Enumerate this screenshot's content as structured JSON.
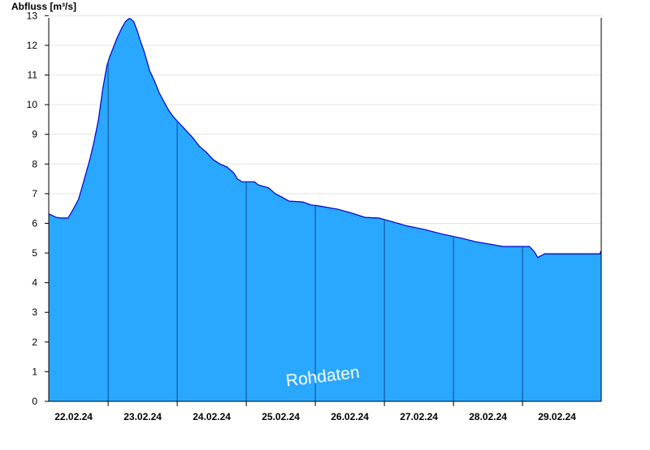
{
  "chart_data": {
    "type": "area",
    "ylabel": "Abfluss [m³/s]",
    "xlabel": "",
    "watermark": "Rohdaten",
    "ylim": [
      0,
      13.2
    ],
    "yticks": [
      0,
      1,
      2,
      3,
      4,
      5,
      6,
      7,
      8,
      9,
      10,
      11,
      12,
      13
    ],
    "day_labels": [
      "22.02.24",
      "23.02.24",
      "24.02.24",
      "25.02.24",
      "26.02.24",
      "27.02.24",
      "28.02.24",
      "29.02.24"
    ],
    "x_unit": "days since 22.02.24 00:00",
    "xlim": [
      -0.18,
      7.82
    ],
    "grid": true,
    "fill_color": "#2aa7ff",
    "line_color": "#0000cc",
    "series": [
      {
        "x": [
          -0.18,
          -0.07,
          0,
          0.1,
          0.18,
          0.25,
          0.3,
          0.36,
          0.42,
          0.48,
          0.54,
          0.6,
          0.66,
          0.7,
          0.75,
          0.8,
          0.84,
          0.88,
          0.93,
          0.98,
          1.0,
          1.05,
          1.1,
          1.14,
          1.2,
          1.25,
          1.28,
          1.35,
          1.42,
          1.5,
          1.56,
          1.62,
          1.7,
          1.8,
          1.9,
          2.0,
          2.1,
          2.2,
          2.3,
          2.35,
          2.4,
          2.5,
          2.55,
          2.62,
          2.7,
          2.8,
          2.85,
          3.0,
          3.05,
          3.1,
          3.2,
          3.3,
          3.5,
          3.62,
          3.7,
          4.0,
          4.2,
          4.4,
          4.6,
          4.8,
          5.0,
          5.25,
          5.5,
          5.8,
          6.0,
          6.4,
          6.78,
          6.85,
          6.9,
          7.0,
          7.5,
          7.8,
          7.82
        ],
        "y": [
          6.32,
          6.2,
          6.18,
          6.18,
          6.5,
          6.8,
          7.2,
          7.7,
          8.2,
          8.8,
          9.5,
          10.5,
          11.3,
          11.6,
          11.9,
          12.2,
          12.4,
          12.6,
          12.8,
          12.9,
          12.9,
          12.8,
          12.5,
          12.2,
          11.8,
          11.4,
          11.15,
          10.8,
          10.4,
          10.05,
          9.8,
          9.6,
          9.4,
          9.15,
          8.9,
          8.6,
          8.4,
          8.15,
          8.0,
          7.95,
          7.9,
          7.7,
          7.5,
          7.4,
          7.4,
          7.4,
          7.3,
          7.2,
          7.1,
          7.0,
          6.88,
          6.75,
          6.72,
          6.62,
          6.6,
          6.48,
          6.35,
          6.2,
          6.18,
          6.05,
          5.92,
          5.8,
          5.65,
          5.5,
          5.38,
          5.22,
          5.22,
          5.05,
          4.85,
          4.97,
          4.97,
          4.97,
          5.08
        ]
      }
    ]
  }
}
